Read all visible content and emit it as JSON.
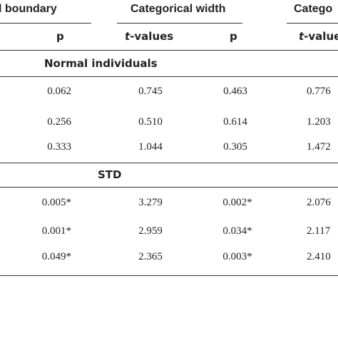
{
  "header": {
    "group1": "l boundary",
    "group2": "Categorical width",
    "group3": "Catego"
  },
  "subheader": {
    "col1": "p",
    "col2_italic": "t",
    "col2_rest": "-values",
    "col3": "p",
    "col4_italic": "t",
    "col4_rest": "-values"
  },
  "sections": [
    {
      "label": "Normal individuals",
      "rows": [
        {
          "p1": "0.062",
          "t2": "0.745",
          "p2": "0.463",
          "t3": "0.776"
        },
        {
          "p1": "0.256",
          "t2": "0.510",
          "p2": "0.614",
          "t3": "1.203"
        },
        {
          "p1": "0.333",
          "t2": "1.044",
          "p2": "0.305",
          "t3": "1.472"
        }
      ]
    },
    {
      "label": "STD",
      "rows": [
        {
          "p1": "0.005*",
          "t2": "3.279",
          "p2": "0.002*",
          "t3": "2.076"
        },
        {
          "p1": "0.001*",
          "t2": "2.959",
          "p2": "0.034*",
          "t3": "2.117"
        },
        {
          "p1": "0.049*",
          "t2": "2.365",
          "p2": "0.003*",
          "t3": "2.410"
        }
      ]
    }
  ]
}
